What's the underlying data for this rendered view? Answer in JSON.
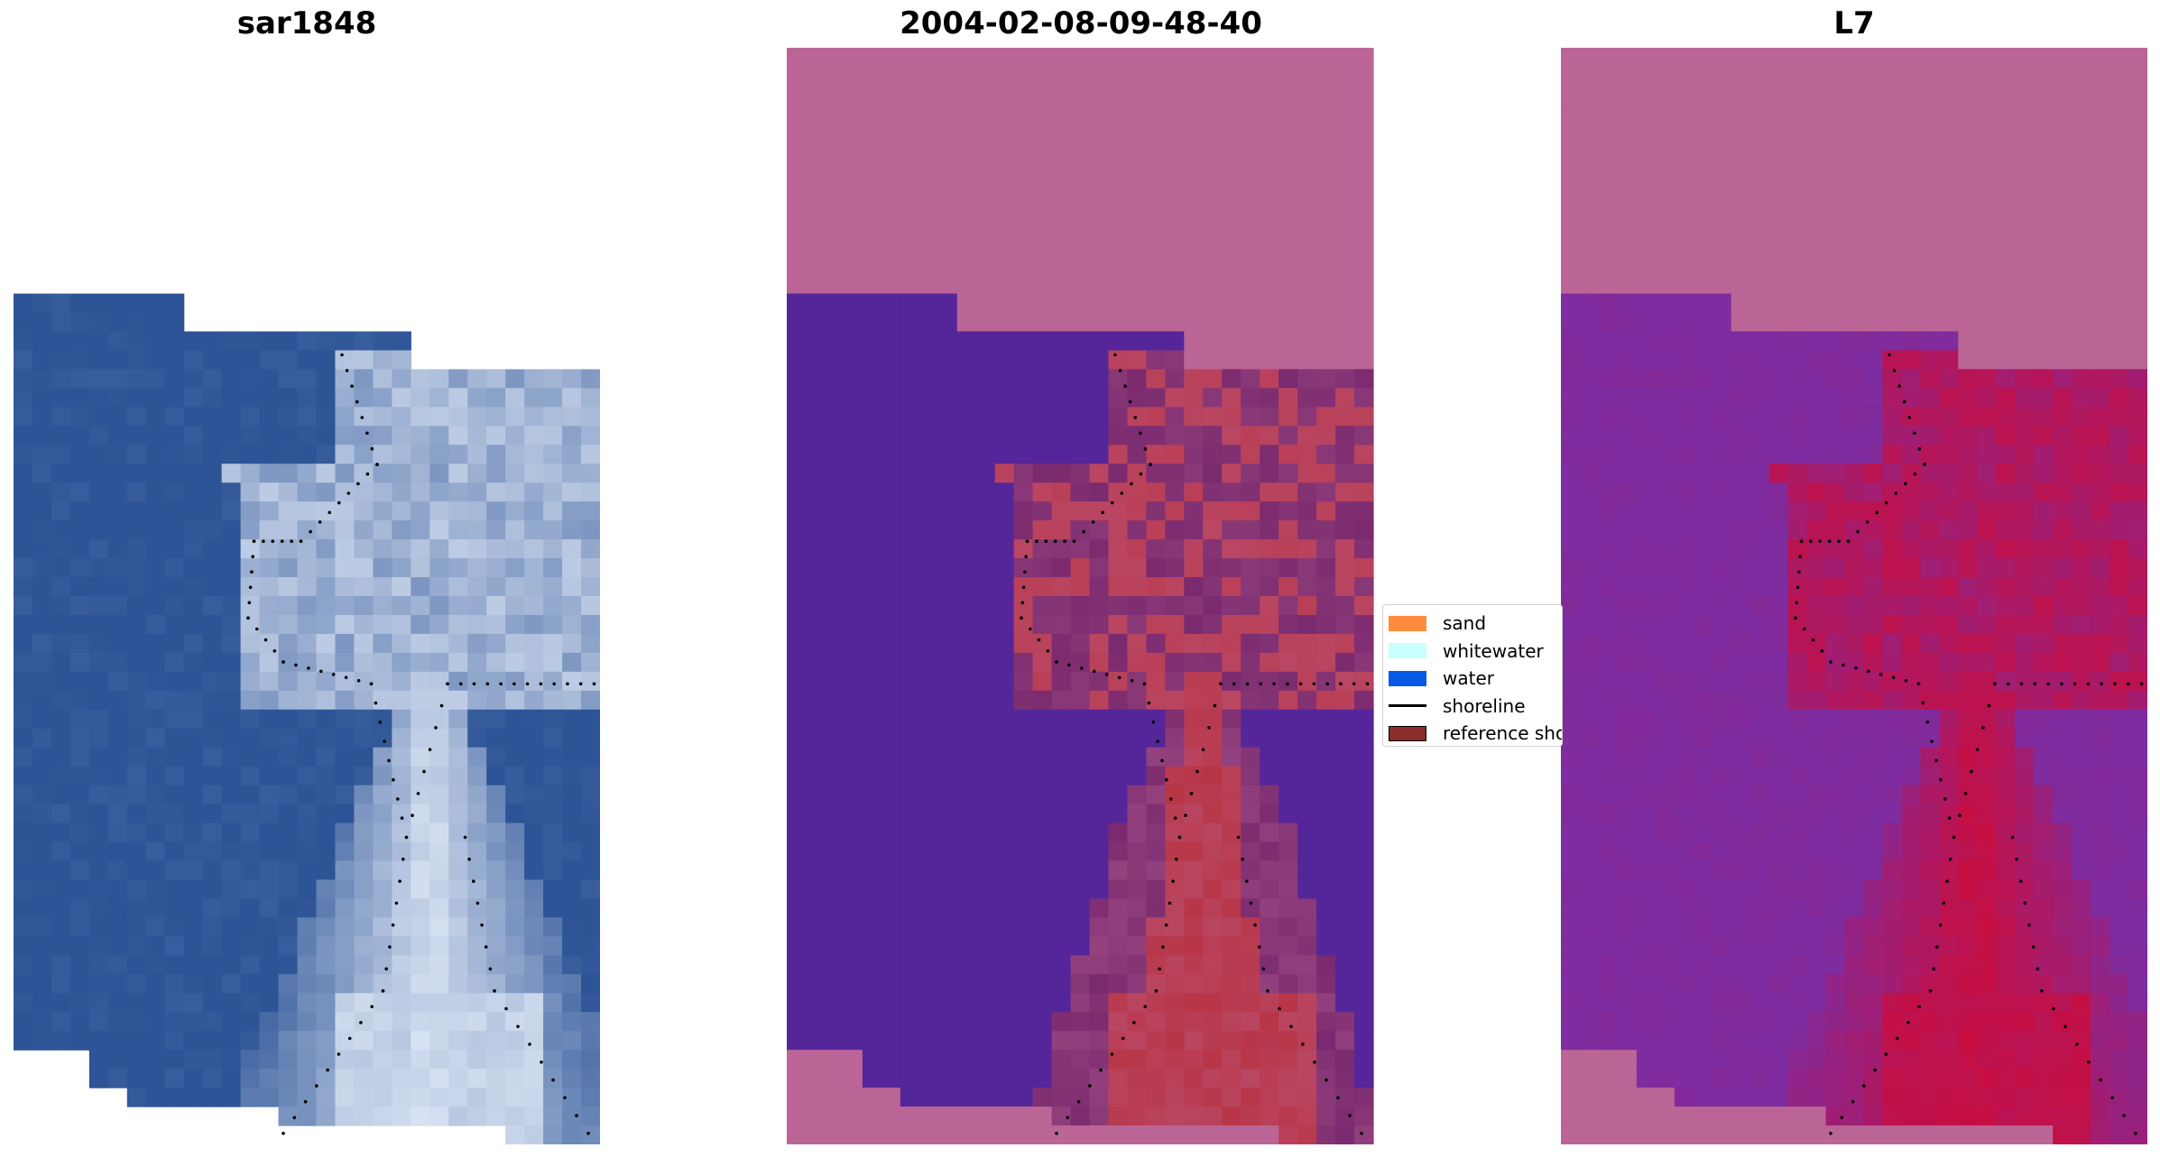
{
  "panels": [
    {
      "title": "sar1848"
    },
    {
      "title": "2004-02-08-09-48-40"
    },
    {
      "title": "L7"
    }
  ],
  "legend": {
    "items": [
      {
        "label": "sand",
        "color": "#ff8c3c",
        "kind": "patch"
      },
      {
        "label": "whitewater",
        "color": "#c8ffff",
        "kind": "patch"
      },
      {
        "label": "water",
        "color": "#0a5ae6",
        "kind": "patch"
      },
      {
        "label": "shoreline",
        "color": "#000000",
        "kind": "line"
      },
      {
        "label": "reference shoreline",
        "color": "#8c2d2d",
        "kind": "patch"
      }
    ]
  },
  "colors": {
    "rgb_water": "#2d5496",
    "rgb_sand": "#e6eefa",
    "class_water": "#55259a",
    "class_sand": "#b83546",
    "class_nodata": "#bb6596",
    "index_water": "#7e2ca0",
    "index_sand": "#c90d3e",
    "shoreline": "#000000"
  }
}
